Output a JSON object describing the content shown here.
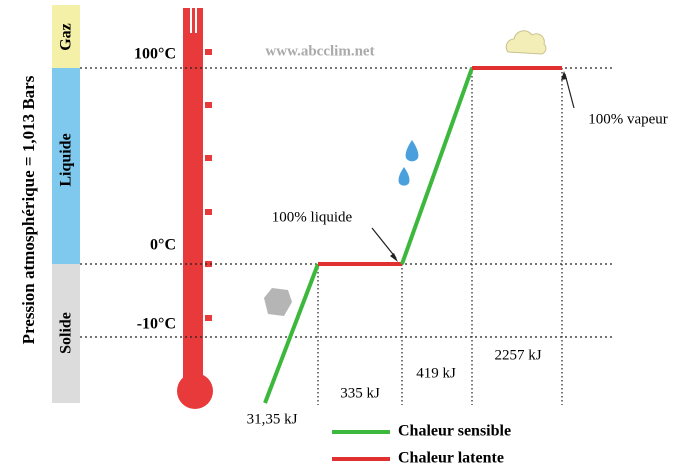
{
  "axis_label": "Pression atmosphérique = 1,013 Bars",
  "phases": [
    "Gaz",
    "Liquide",
    "Solide"
  ],
  "temperatures": [
    "100°C",
    "0°C",
    "-10°C"
  ],
  "energies": [
    "31,35 kJ",
    "335 kJ",
    "419 kJ",
    "2257 kJ"
  ],
  "annotations": [
    "100% liquide",
    "100% vapeur"
  ],
  "watermark": "www.abcclim.net",
  "legend": [
    "Chaleur sensible",
    "Chaleur latente"
  ]
}
